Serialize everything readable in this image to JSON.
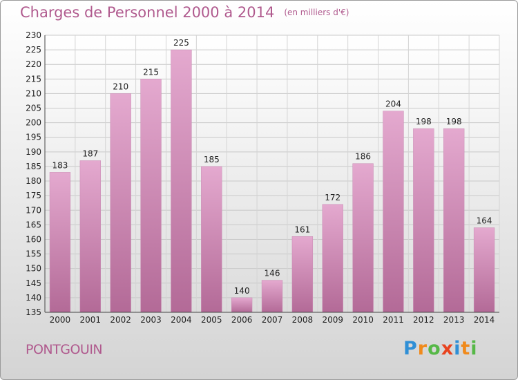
{
  "header": {
    "title": "Charges de Personnel 2000 à 2014",
    "subtitle": "(en milliers d'€)"
  },
  "footer": {
    "commune": "PONTGOUIN",
    "logo_text": "Proxiti"
  },
  "chart_data": {
    "type": "bar",
    "title": "Charges de Personnel 2000 à 2014",
    "subtitle": "(en milliers d'€)",
    "categories": [
      "2000",
      "2001",
      "2002",
      "2003",
      "2004",
      "2005",
      "2006",
      "2007",
      "2008",
      "2009",
      "2010",
      "2011",
      "2012",
      "2013",
      "2014"
    ],
    "values": [
      183,
      187,
      210,
      215,
      225,
      185,
      140,
      146,
      161,
      172,
      186,
      204,
      198,
      198,
      164
    ],
    "ylim": [
      135,
      230
    ],
    "yticks": [
      135,
      140,
      145,
      150,
      155,
      160,
      165,
      170,
      175,
      180,
      185,
      190,
      195,
      200,
      205,
      210,
      215,
      220,
      225,
      230
    ],
    "grid": true,
    "bar_color": "#dc9cc4",
    "bar_color_dark": "#b0608f",
    "accent_color": "#b05a8e"
  }
}
